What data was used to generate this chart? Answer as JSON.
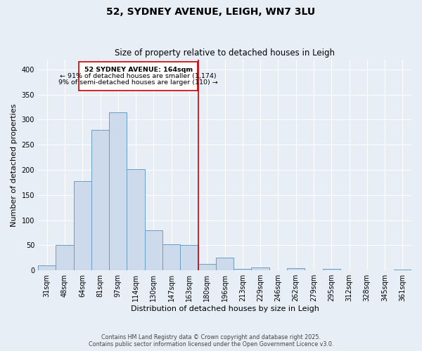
{
  "title": "52, SYDNEY AVENUE, LEIGH, WN7 3LU",
  "subtitle": "Size of property relative to detached houses in Leigh",
  "xlabel": "Distribution of detached houses by size in Leigh",
  "ylabel": "Number of detached properties",
  "bar_color": "#ccdaeb",
  "bar_edge_color": "#6a9ec5",
  "categories": [
    "31sqm",
    "48sqm",
    "64sqm",
    "81sqm",
    "97sqm",
    "114sqm",
    "130sqm",
    "147sqm",
    "163sqm",
    "180sqm",
    "196sqm",
    "213sqm",
    "229sqm",
    "246sqm",
    "262sqm",
    "279sqm",
    "295sqm",
    "312sqm",
    "328sqm",
    "345sqm",
    "361sqm"
  ],
  "values": [
    10,
    50,
    178,
    280,
    315,
    202,
    80,
    52,
    50,
    13,
    25,
    3,
    6,
    0,
    4,
    0,
    3,
    0,
    0,
    0,
    1
  ],
  "marker_line_color": "#cc0000",
  "annotation_line1": "52 SYDNEY AVENUE: 164sqm",
  "annotation_line2": "← 91% of detached houses are smaller (1,174)",
  "annotation_line3": "9% of semi-detached houses are larger (110) →",
  "annotation_box_color": "#cc0000",
  "ylim": [
    0,
    420
  ],
  "footer_line1": "Contains HM Land Registry data © Crown copyright and database right 2025.",
  "footer_line2": "Contains public sector information licensed under the Open Government Licence v3.0.",
  "background_color": "#e8eef5",
  "plot_background": "#e8eef5"
}
